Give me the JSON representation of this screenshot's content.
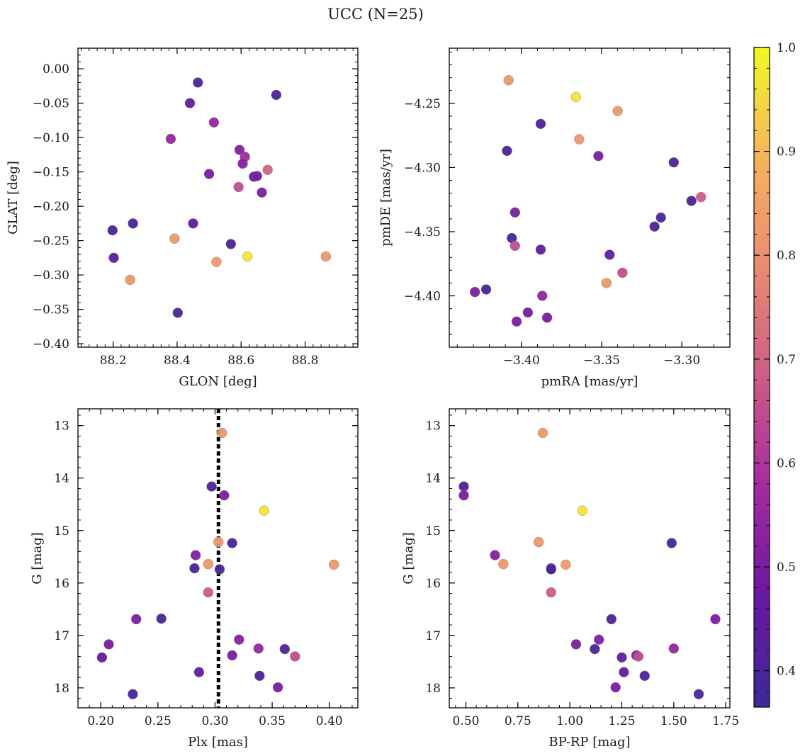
{
  "figure": {
    "title": "UCC (N=25)"
  },
  "colorbar": {
    "range": [
      0.365,
      1.0
    ],
    "ticks": [
      "0.4",
      "0.5",
      "0.6",
      "0.7",
      "0.8",
      "0.9",
      "1.0"
    ],
    "colormap": "plasma",
    "stops": [
      "#3b2a98",
      "#6a16a2",
      "#a52aa0",
      "#cc5c86",
      "#e98b70",
      "#f7b35c",
      "#f0f921"
    ]
  },
  "chart_data": [
    {
      "id": "glon_glat",
      "type": "scatter",
      "xlabel": "GLON [deg]",
      "ylabel": "GLAT [deg]",
      "xlim": [
        88.09,
        88.965
      ],
      "ylim": [
        -0.405,
        0.03
      ],
      "invert_y": false,
      "xticks": [
        "88.2",
        "88.4",
        "88.6",
        "88.8"
      ],
      "yticks": [
        "0.00",
        "−0.05",
        "−0.10",
        "−0.15",
        "−0.20",
        "−0.25",
        "−0.30",
        "−0.35",
        "−0.40"
      ],
      "points": [
        {
          "x": 88.465,
          "y": -0.02,
          "c": 0.4
        },
        {
          "x": 88.71,
          "y": -0.038,
          "c": 0.4
        },
        {
          "x": 88.44,
          "y": -0.05,
          "c": 0.45
        },
        {
          "x": 88.515,
          "y": -0.078,
          "c": 0.55
        },
        {
          "x": 88.38,
          "y": -0.102,
          "c": 0.55
        },
        {
          "x": 88.595,
          "y": -0.118,
          "c": 0.52
        },
        {
          "x": 88.612,
          "y": -0.128,
          "c": 0.58
        },
        {
          "x": 88.605,
          "y": -0.138,
          "c": 0.52
        },
        {
          "x": 88.5,
          "y": -0.153,
          "c": 0.5
        },
        {
          "x": 88.683,
          "y": -0.147,
          "c": 0.7
        },
        {
          "x": 88.64,
          "y": -0.157,
          "c": 0.45
        },
        {
          "x": 88.65,
          "y": -0.156,
          "c": 0.5
        },
        {
          "x": 88.592,
          "y": -0.172,
          "c": 0.65
        },
        {
          "x": 88.665,
          "y": -0.18,
          "c": 0.5
        },
        {
          "x": 88.198,
          "y": -0.235,
          "c": 0.4
        },
        {
          "x": 88.262,
          "y": -0.225,
          "c": 0.4
        },
        {
          "x": 88.45,
          "y": -0.225,
          "c": 0.45
        },
        {
          "x": 88.202,
          "y": -0.275,
          "c": 0.45
        },
        {
          "x": 88.392,
          "y": -0.247,
          "c": 0.82
        },
        {
          "x": 88.568,
          "y": -0.255,
          "c": 0.4
        },
        {
          "x": 88.523,
          "y": -0.281,
          "c": 0.82
        },
        {
          "x": 88.62,
          "y": -0.273,
          "c": 0.97
        },
        {
          "x": 88.865,
          "y": -0.273,
          "c": 0.82
        },
        {
          "x": 88.253,
          "y": -0.307,
          "c": 0.82
        },
        {
          "x": 88.402,
          "y": -0.355,
          "c": 0.4
        }
      ]
    },
    {
      "id": "pm",
      "type": "scatter",
      "xlabel": "pmRA [mas/yr]",
      "ylabel": "pmDE [mas/yr]",
      "xlim": [
        -3.445,
        -3.27
      ],
      "ylim": [
        -4.44,
        -4.207
      ],
      "invert_y": false,
      "xticks": [
        "−3.40",
        "−3.35",
        "−3.30"
      ],
      "yticks": [
        "−4.25",
        "−4.30",
        "−4.35",
        "−4.40"
      ],
      "points": [
        {
          "x": -3.408,
          "y": -4.232,
          "c": 0.82
        },
        {
          "x": -3.366,
          "y": -4.245,
          "c": 0.97
        },
        {
          "x": -3.34,
          "y": -4.256,
          "c": 0.82
        },
        {
          "x": -3.388,
          "y": -4.266,
          "c": 0.4
        },
        {
          "x": -3.364,
          "y": -4.278,
          "c": 0.82
        },
        {
          "x": -3.352,
          "y": -4.291,
          "c": 0.5
        },
        {
          "x": -3.409,
          "y": -4.287,
          "c": 0.4
        },
        {
          "x": -3.305,
          "y": -4.296,
          "c": 0.4
        },
        {
          "x": -3.288,
          "y": -4.323,
          "c": 0.68
        },
        {
          "x": -3.294,
          "y": -4.326,
          "c": 0.4
        },
        {
          "x": -3.404,
          "y": -4.335,
          "c": 0.5
        },
        {
          "x": -3.313,
          "y": -4.339,
          "c": 0.4
        },
        {
          "x": -3.317,
          "y": -4.346,
          "c": 0.4
        },
        {
          "x": -3.406,
          "y": -4.355,
          "c": 0.4
        },
        {
          "x": -3.404,
          "y": -4.361,
          "c": 0.65
        },
        {
          "x": -3.388,
          "y": -4.364,
          "c": 0.45
        },
        {
          "x": -3.345,
          "y": -4.368,
          "c": 0.45
        },
        {
          "x": -3.337,
          "y": -4.382,
          "c": 0.65
        },
        {
          "x": -3.347,
          "y": -4.39,
          "c": 0.82
        },
        {
          "x": -3.422,
          "y": -4.395,
          "c": 0.4
        },
        {
          "x": -3.429,
          "y": -4.397,
          "c": 0.5
        },
        {
          "x": -3.387,
          "y": -4.4,
          "c": 0.55
        },
        {
          "x": -3.396,
          "y": -4.413,
          "c": 0.5
        },
        {
          "x": -3.384,
          "y": -4.417,
          "c": 0.5
        },
        {
          "x": -3.403,
          "y": -4.42,
          "c": 0.5
        }
      ]
    },
    {
      "id": "plx_g",
      "type": "scatter",
      "xlabel": "Plx [mas]",
      "ylabel": "G [mag]",
      "xlim": [
        0.18,
        0.425
      ],
      "ylim": [
        12.68,
        18.38
      ],
      "invert_y": true,
      "xticks": [
        "0.20",
        "0.25",
        "0.30",
        "0.35",
        "0.40"
      ],
      "yticks": [
        "13",
        "14",
        "15",
        "16",
        "17",
        "18"
      ],
      "vline": 0.303,
      "points": [
        {
          "x": 0.306,
          "y": 13.14,
          "c": 0.82
        },
        {
          "x": 0.297,
          "y": 14.16,
          "c": 0.4
        },
        {
          "x": 0.308,
          "y": 14.33,
          "c": 0.5
        },
        {
          "x": 0.343,
          "y": 14.62,
          "c": 0.97
        },
        {
          "x": 0.303,
          "y": 15.22,
          "c": 0.82
        },
        {
          "x": 0.315,
          "y": 15.24,
          "c": 0.4
        },
        {
          "x": 0.283,
          "y": 15.47,
          "c": 0.52
        },
        {
          "x": 0.294,
          "y": 15.64,
          "c": 0.82
        },
        {
          "x": 0.404,
          "y": 15.65,
          "c": 0.82
        },
        {
          "x": 0.282,
          "y": 15.72,
          "c": 0.4
        },
        {
          "x": 0.304,
          "y": 15.74,
          "c": 0.4
        },
        {
          "x": 0.294,
          "y": 16.18,
          "c": 0.68
        },
        {
          "x": 0.231,
          "y": 16.69,
          "c": 0.5
        },
        {
          "x": 0.253,
          "y": 16.68,
          "c": 0.4
        },
        {
          "x": 0.321,
          "y": 17.08,
          "c": 0.52
        },
        {
          "x": 0.207,
          "y": 17.17,
          "c": 0.5
        },
        {
          "x": 0.338,
          "y": 17.25,
          "c": 0.55
        },
        {
          "x": 0.361,
          "y": 17.26,
          "c": 0.4
        },
        {
          "x": 0.315,
          "y": 17.38,
          "c": 0.5
        },
        {
          "x": 0.37,
          "y": 17.4,
          "c": 0.65
        },
        {
          "x": 0.201,
          "y": 17.42,
          "c": 0.45
        },
        {
          "x": 0.286,
          "y": 17.7,
          "c": 0.45
        },
        {
          "x": 0.339,
          "y": 17.77,
          "c": 0.4
        },
        {
          "x": 0.355,
          "y": 17.99,
          "c": 0.5
        },
        {
          "x": 0.228,
          "y": 18.12,
          "c": 0.4
        }
      ]
    },
    {
      "id": "cmd",
      "type": "scatter",
      "xlabel": "BP-RP [mag]",
      "ylabel": "G [mag]",
      "xlim": [
        0.42,
        1.77
      ],
      "ylim": [
        12.68,
        18.38
      ],
      "invert_y": true,
      "xticks": [
        "0.50",
        "0.75",
        "1.00",
        "1.25",
        "1.50",
        "1.75"
      ],
      "yticks": [
        "13",
        "14",
        "15",
        "16",
        "17",
        "18"
      ],
      "points": [
        {
          "x": 0.87,
          "y": 13.14,
          "c": 0.82
        },
        {
          "x": 0.49,
          "y": 14.16,
          "c": 0.4
        },
        {
          "x": 0.49,
          "y": 14.33,
          "c": 0.5
        },
        {
          "x": 1.06,
          "y": 14.62,
          "c": 0.97
        },
        {
          "x": 0.85,
          "y": 15.22,
          "c": 0.82
        },
        {
          "x": 1.49,
          "y": 15.24,
          "c": 0.4
        },
        {
          "x": 0.64,
          "y": 15.47,
          "c": 0.52
        },
        {
          "x": 0.68,
          "y": 15.64,
          "c": 0.82
        },
        {
          "x": 0.98,
          "y": 15.65,
          "c": 0.82
        },
        {
          "x": 0.91,
          "y": 15.72,
          "c": 0.4
        },
        {
          "x": 0.91,
          "y": 15.74,
          "c": 0.4
        },
        {
          "x": 0.91,
          "y": 16.18,
          "c": 0.68
        },
        {
          "x": 1.2,
          "y": 16.69,
          "c": 0.4
        },
        {
          "x": 1.7,
          "y": 16.69,
          "c": 0.5
        },
        {
          "x": 1.14,
          "y": 17.08,
          "c": 0.52
        },
        {
          "x": 1.03,
          "y": 17.17,
          "c": 0.5
        },
        {
          "x": 1.12,
          "y": 17.26,
          "c": 0.4
        },
        {
          "x": 1.5,
          "y": 17.25,
          "c": 0.55
        },
        {
          "x": 1.32,
          "y": 17.38,
          "c": 0.5
        },
        {
          "x": 1.33,
          "y": 17.4,
          "c": 0.65
        },
        {
          "x": 1.25,
          "y": 17.42,
          "c": 0.45
        },
        {
          "x": 1.26,
          "y": 17.7,
          "c": 0.45
        },
        {
          "x": 1.36,
          "y": 17.77,
          "c": 0.4
        },
        {
          "x": 1.22,
          "y": 17.99,
          "c": 0.5
        },
        {
          "x": 1.62,
          "y": 18.12,
          "c": 0.4
        }
      ]
    }
  ]
}
